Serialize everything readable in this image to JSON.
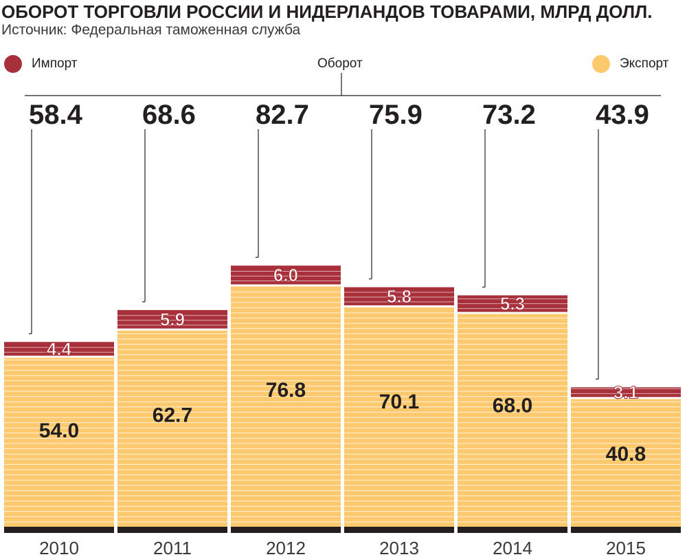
{
  "title": "ОБОРОТ ТОРГОВЛИ РОССИИ И НИДЕРЛАНДОВ ТОВАРАМИ, МЛРД ДОЛЛ.",
  "subtitle": "Источник: Федеральная таможенная служба",
  "legend": {
    "import": "Импорт",
    "turnover": "Оборот",
    "export": "Экспорт"
  },
  "colors": {
    "import": "#a8303a",
    "export": "#fcc96f",
    "baseline": "#231f20",
    "text": "#231f20"
  },
  "chart_data": {
    "type": "bar",
    "stacked": true,
    "categories": [
      "2010",
      "2011",
      "2012",
      "2013",
      "2014",
      "2015"
    ],
    "series": [
      {
        "name": "Экспорт",
        "values": [
          54.0,
          62.7,
          76.8,
          70.1,
          68.0,
          40.8
        ]
      },
      {
        "name": "Импорт",
        "values": [
          4.4,
          5.9,
          6.0,
          5.8,
          5.3,
          3.1
        ]
      }
    ],
    "totals": [
      58.4,
      68.6,
      82.7,
      75.9,
      73.2,
      43.9
    ],
    "value_labels": {
      "export": [
        "54.0",
        "62.7",
        "76.8",
        "70.1",
        "68.0",
        "40.8"
      ],
      "import": [
        "4.4",
        "5.9",
        "6.0",
        "5.8",
        "5.3",
        "3.1"
      ],
      "totals": [
        "58.4",
        "68.6",
        "82.7",
        "75.9",
        "73.2",
        "43.9"
      ]
    },
    "ylim": [
      0,
      90
    ],
    "grid": false,
    "legend_position": "top"
  }
}
